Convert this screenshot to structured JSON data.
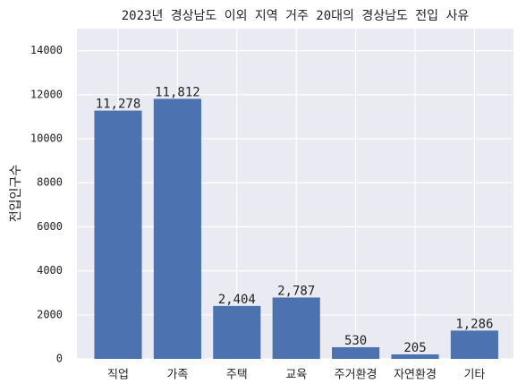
{
  "chart_data": {
    "type": "bar",
    "title": "2023년 경상남도 이외 지역 거주 20대의 경상남도 전입 사유",
    "y_label": "전입인구수",
    "categories": [
      "직업",
      "가족",
      "주택",
      "교육",
      "주거환경",
      "자연환경",
      "기타"
    ],
    "values": [
      11278,
      11812,
      2404,
      2787,
      530,
      205,
      1286
    ],
    "value_labels": [
      "11,278",
      "11,812",
      "2,404",
      "2,787",
      "530",
      "205",
      "1,286"
    ],
    "color": "#4c72b0",
    "ylim": [
      0,
      15000
    ],
    "yticks": [
      0,
      2000,
      4000,
      6000,
      8000,
      10000,
      12000,
      14000
    ],
    "grid": true
  }
}
